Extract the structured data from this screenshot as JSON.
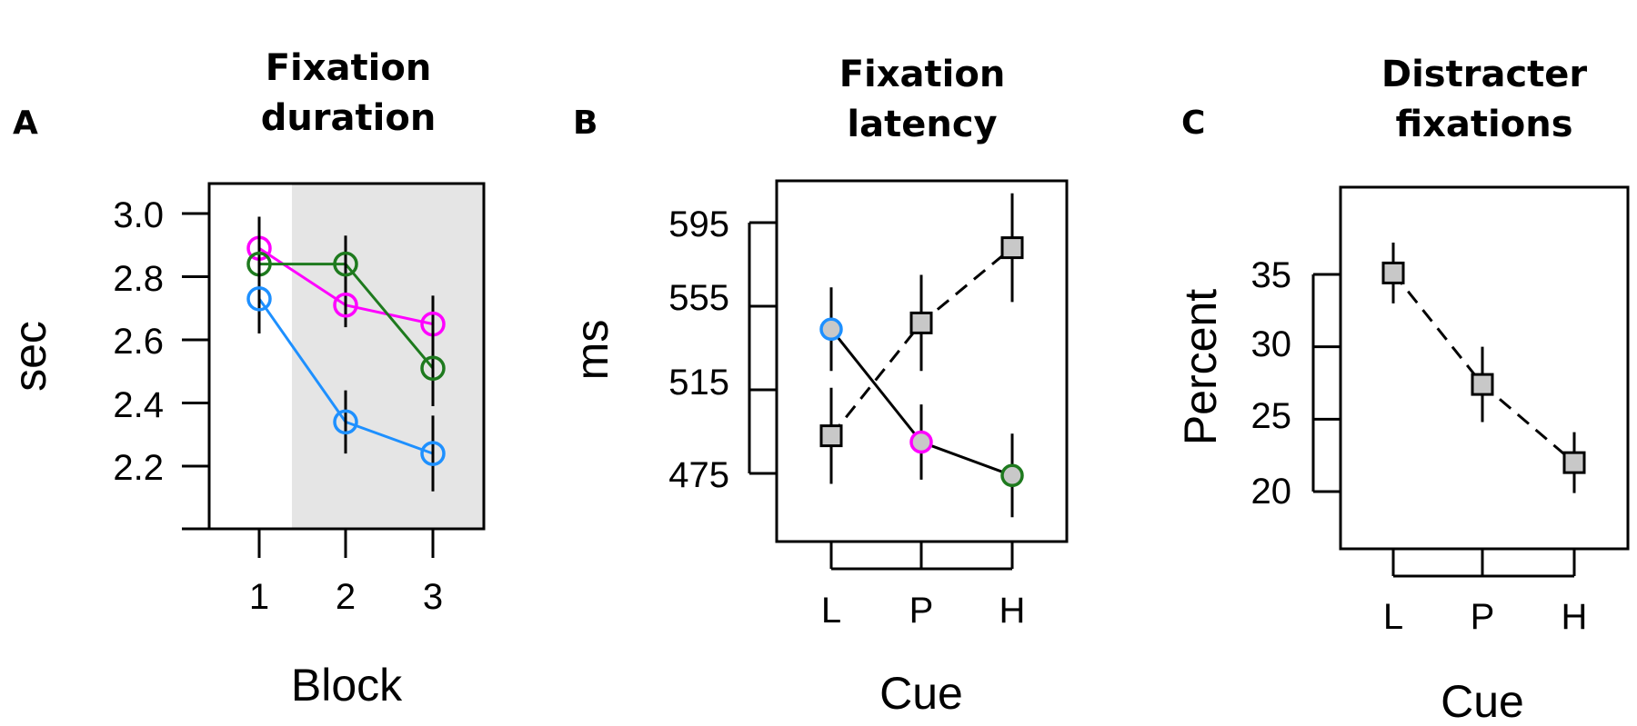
{
  "chart_data": [
    {
      "panel_letter": "A",
      "type": "line",
      "title": [
        "Fixation",
        "duration"
      ],
      "xlabel": "Block",
      "ylabel": "sec",
      "categories": [
        "1",
        "2",
        "3"
      ],
      "yticks": [
        "3.0",
        "2.8",
        "2.6",
        "2.4",
        "2.2"
      ],
      "ylim": [
        2.02,
        3.1
      ],
      "shaded_region": "Blocks 2-3 shaded light grey",
      "series": [
        {
          "color": "#ff00ff",
          "marker": "open-circle",
          "line": "solid",
          "values": [
            2.89,
            2.71,
            2.65
          ],
          "error": [
            0.1,
            0.07,
            0.09
          ]
        },
        {
          "color": "#1e7a1e",
          "marker": "open-circle",
          "line": "solid",
          "values": [
            2.84,
            2.84,
            2.51
          ],
          "error": [
            0.09,
            0.09,
            0.12
          ]
        },
        {
          "color": "#1e90ff",
          "marker": "open-circle",
          "line": "solid",
          "values": [
            2.73,
            2.34,
            2.24
          ],
          "error": [
            0.11,
            0.1,
            0.12
          ]
        }
      ]
    },
    {
      "panel_letter": "B",
      "type": "line",
      "title": [
        "Fixation",
        "latency"
      ],
      "xlabel": "Cue",
      "ylabel": "ms",
      "categories": [
        "L",
        "P",
        "H"
      ],
      "yticks": [
        "595",
        "555",
        "515",
        "475"
      ],
      "ylim": [
        445,
        616
      ],
      "series": [
        {
          "line": "solid",
          "marker": "filled-circle",
          "fill": "#c8c8c8",
          "outline_colors": [
            "#1e90ff",
            "#ff00ff",
            "#1e7a1e"
          ],
          "values": [
            544,
            490,
            474
          ],
          "error": [
            20,
            18,
            20
          ]
        },
        {
          "line": "dashed",
          "marker": "square",
          "fill": "#c8c8c8",
          "values": [
            493,
            547,
            583
          ],
          "error": [
            23,
            23,
            26
          ]
        }
      ]
    },
    {
      "panel_letter": "C",
      "type": "line",
      "title": [
        "Distracter",
        "fixations"
      ],
      "xlabel": "Cue",
      "ylabel": "Percent",
      "categories": [
        "L",
        "P",
        "H"
      ],
      "yticks": [
        "35",
        "30",
        "25",
        "20"
      ],
      "ylim": [
        16.2,
        41.5
      ],
      "series": [
        {
          "line": "dashed",
          "marker": "square",
          "fill": "#c8c8c8",
          "values": [
            35.1,
            27.4,
            22.0
          ],
          "error": [
            2.1,
            2.6,
            2.1
          ]
        }
      ]
    }
  ]
}
